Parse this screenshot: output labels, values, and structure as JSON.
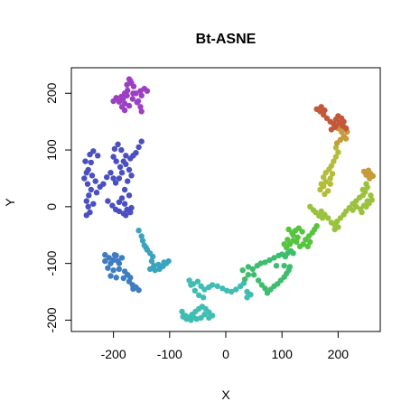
{
  "chart_data": {
    "type": "scatter",
    "title": "Bt-ASNE",
    "xlabel": "X",
    "ylabel": "Y",
    "xlim": [
      -275,
      275
    ],
    "ylim": [
      -220,
      245
    ],
    "xticks": [
      -200,
      -100,
      0,
      100,
      200
    ],
    "xtick_labels": [
      "-200",
      "-100",
      "0",
      "100",
      "200"
    ],
    "yticks": [
      -200,
      -100,
      0,
      100,
      200
    ],
    "ytick_labels": [
      "-200",
      "-100",
      "0",
      "100",
      "200"
    ],
    "grid": false,
    "color_scale": "rainbow",
    "series": [
      {
        "color": "#9c3fc2",
        "points": [
          [
            -172,
            225
          ],
          [
            -168,
            218
          ],
          [
            -164,
            212
          ],
          [
            -175,
            205
          ],
          [
            -180,
            200
          ],
          [
            -186,
            194
          ],
          [
            -195,
            192
          ],
          [
            -200,
            186
          ],
          [
            -190,
            185
          ],
          [
            -183,
            190
          ],
          [
            -176,
            196
          ],
          [
            -180,
            182
          ],
          [
            -185,
            176
          ],
          [
            -180,
            170
          ],
          [
            -172,
            178
          ],
          [
            -166,
            190
          ],
          [
            -160,
            200
          ],
          [
            -152,
            204
          ],
          [
            -145,
            208
          ],
          [
            -140,
            204
          ],
          [
            -150,
            196
          ],
          [
            -156,
            186
          ],
          [
            -152,
            176
          ],
          [
            -150,
            168
          ],
          [
            -158,
            184
          ],
          [
            -165,
            200
          ],
          [
            -170,
            222
          ],
          [
            -176,
            215
          ]
        ]
      },
      {
        "color": "#4a4fc2",
        "points": [
          [
            -150,
            115
          ],
          [
            -155,
            105
          ],
          [
            -160,
            95
          ],
          [
            -165,
            90
          ],
          [
            -170,
            85
          ],
          [
            -178,
            90
          ],
          [
            -186,
            100
          ],
          [
            -192,
            110
          ],
          [
            -198,
            102
          ],
          [
            -200,
            88
          ],
          [
            -195,
            80
          ],
          [
            -188,
            70
          ],
          [
            -185,
            60
          ],
          [
            -190,
            50
          ],
          [
            -196,
            42
          ],
          [
            -200,
            50
          ],
          [
            -205,
            60
          ],
          [
            -212,
            52
          ],
          [
            -218,
            40
          ],
          [
            -224,
            35
          ],
          [
            -232,
            45
          ],
          [
            -238,
            55
          ],
          [
            -245,
            65
          ],
          [
            -250,
            80
          ],
          [
            -242,
            92
          ],
          [
            -236,
            98
          ],
          [
            -228,
            90
          ],
          [
            -240,
            78
          ],
          [
            -248,
            60
          ],
          [
            -252,
            50
          ],
          [
            -246,
            40
          ],
          [
            -240,
            30
          ],
          [
            -244,
            20
          ],
          [
            -248,
            10
          ],
          [
            -245,
            0
          ],
          [
            -242,
            -10
          ],
          [
            -248,
            -15
          ],
          [
            -236,
            5
          ],
          [
            -230,
            25
          ],
          [
            -210,
            10
          ],
          [
            -202,
            2
          ],
          [
            -196,
            -5
          ],
          [
            -190,
            8
          ],
          [
            -185,
            15
          ],
          [
            -180,
            5
          ],
          [
            -176,
            -5
          ],
          [
            -182,
            -12
          ],
          [
            -190,
            -8
          ],
          [
            -178,
            -15
          ],
          [
            -170,
            -10
          ],
          [
            -168,
            -2
          ],
          [
            -172,
            20
          ],
          [
            -180,
            30
          ],
          [
            -175,
            45
          ],
          [
            -168,
            55
          ],
          [
            -172,
            65
          ],
          [
            -178,
            75
          ],
          [
            -182,
            80
          ]
        ]
      },
      {
        "color": "#3f7dc2",
        "points": [
          [
            -215,
            -85
          ],
          [
            -208,
            -90
          ],
          [
            -200,
            -94
          ],
          [
            -195,
            -86
          ],
          [
            -192,
            -96
          ],
          [
            -205,
            -100
          ],
          [
            -215,
            -96
          ],
          [
            -210,
            -108
          ],
          [
            -200,
            -112
          ],
          [
            -190,
            -110
          ],
          [
            -180,
            -114
          ],
          [
            -175,
            -120
          ],
          [
            -170,
            -125
          ],
          [
            -172,
            -132
          ],
          [
            -166,
            -138
          ],
          [
            -160,
            -142
          ],
          [
            -155,
            -147
          ],
          [
            -165,
            -145
          ],
          [
            -190,
            -100
          ],
          [
            -185,
            -90
          ],
          [
            -198,
            -85
          ],
          [
            -205,
            -122
          ],
          [
            -195,
            -125
          ],
          [
            -182,
            -126
          ]
        ]
      },
      {
        "color": "#3aa3bd",
        "points": [
          [
            -155,
            -42
          ],
          [
            -150,
            -52
          ],
          [
            -148,
            -60
          ],
          [
            -145,
            -68
          ],
          [
            -140,
            -76
          ],
          [
            -135,
            -82
          ],
          [
            -130,
            -88
          ],
          [
            -132,
            -96
          ],
          [
            -128,
            -104
          ],
          [
            -135,
            -110
          ],
          [
            -126,
            -112
          ],
          [
            -118,
            -110
          ],
          [
            -112,
            -105
          ],
          [
            -106,
            -100
          ],
          [
            -102,
            -96
          ],
          [
            -110,
            -98
          ],
          [
            -120,
            -102
          ],
          [
            -142,
            -72
          ]
        ]
      },
      {
        "color": "#3ebdb3",
        "points": [
          [
            -65,
            -130
          ],
          [
            -58,
            -136
          ],
          [
            -50,
            -132
          ],
          [
            -44,
            -140
          ],
          [
            -38,
            -146
          ],
          [
            -30,
            -142
          ],
          [
            -24,
            -138
          ],
          [
            -15,
            -140
          ],
          [
            -6,
            -144
          ],
          [
            2,
            -148
          ],
          [
            10,
            -150
          ],
          [
            18,
            -146
          ],
          [
            26,
            -140
          ],
          [
            32,
            -135
          ],
          [
            38,
            -150
          ],
          [
            44,
            -155
          ],
          [
            38,
            -160
          ],
          [
            -62,
            -138
          ],
          [
            -55,
            -148
          ],
          [
            -48,
            -156
          ],
          [
            -40,
            -160
          ],
          [
            -78,
            -185
          ],
          [
            -72,
            -192
          ],
          [
            -66,
            -195
          ],
          [
            -60,
            -190
          ],
          [
            -54,
            -185
          ],
          [
            -48,
            -180
          ],
          [
            -42,
            -176
          ],
          [
            -36,
            -180
          ],
          [
            -30,
            -186
          ],
          [
            -24,
            -192
          ],
          [
            -30,
            -196
          ],
          [
            -38,
            -190
          ],
          [
            -44,
            -196
          ],
          [
            -52,
            -198
          ],
          [
            -62,
            -200
          ],
          [
            -70,
            -198
          ],
          [
            -76,
            -194
          ],
          [
            -58,
            -194
          ]
        ]
      },
      {
        "color": "#3fbd6e",
        "points": [
          [
            30,
            -112
          ],
          [
            40,
            -106
          ],
          [
            48,
            -110
          ],
          [
            56,
            -104
          ],
          [
            62,
            -100
          ],
          [
            70,
            -98
          ],
          [
            78,
            -94
          ],
          [
            86,
            -90
          ],
          [
            94,
            -86
          ],
          [
            100,
            -84
          ],
          [
            106,
            -88
          ],
          [
            110,
            -82
          ],
          [
            116,
            -78
          ],
          [
            120,
            -82
          ],
          [
            50,
            -120
          ],
          [
            58,
            -130
          ],
          [
            64,
            -138
          ],
          [
            70,
            -144
          ],
          [
            74,
            -152
          ],
          [
            80,
            -146
          ],
          [
            86,
            -140
          ],
          [
            92,
            -136
          ],
          [
            98,
            -130
          ],
          [
            104,
            -124
          ],
          [
            108,
            -118
          ],
          [
            112,
            -112
          ],
          [
            114,
            -106
          ],
          [
            104,
            -104
          ],
          [
            90,
            -104
          ],
          [
            40,
            -120
          ],
          [
            34,
            -128
          ]
        ]
      },
      {
        "color": "#56c43f",
        "points": [
          [
            112,
            -40
          ],
          [
            118,
            -46
          ],
          [
            124,
            -42
          ],
          [
            130,
            -38
          ],
          [
            136,
            -44
          ],
          [
            128,
            -54
          ],
          [
            120,
            -60
          ],
          [
            114,
            -66
          ],
          [
            108,
            -72
          ],
          [
            104,
            -66
          ],
          [
            110,
            -58
          ],
          [
            120,
            -50
          ],
          [
            126,
            -62
          ],
          [
            132,
            -70
          ],
          [
            138,
            -66
          ],
          [
            142,
            -58
          ],
          [
            148,
            -52
          ],
          [
            154,
            -46
          ],
          [
            158,
            -40
          ],
          [
            162,
            -34
          ],
          [
            150,
            -62
          ],
          [
            146,
            -70
          ]
        ]
      },
      {
        "color": "#9ac23c",
        "points": [
          [
            160,
            -10
          ],
          [
            166,
            -16
          ],
          [
            172,
            -20
          ],
          [
            176,
            -14
          ],
          [
            182,
            -20
          ],
          [
            188,
            -28
          ],
          [
            194,
            -32
          ],
          [
            198,
            -26
          ],
          [
            204,
            -20
          ],
          [
            210,
            -14
          ],
          [
            200,
            -36
          ],
          [
            194,
            -40
          ],
          [
            150,
            0
          ],
          [
            156,
            -6
          ],
          [
            170,
            -8
          ],
          [
            214,
            -8
          ],
          [
            220,
            -2
          ],
          [
            226,
            5
          ],
          [
            232,
            10
          ],
          [
            238,
            16
          ],
          [
            244,
            20
          ],
          [
            248,
            26
          ],
          [
            252,
            34
          ],
          [
            250,
            40
          ],
          [
            244,
            30
          ],
          [
            232,
            0
          ],
          [
            226,
            -6
          ],
          [
            240,
            -4
          ],
          [
            250,
            0
          ],
          [
            255,
            6
          ],
          [
            260,
            12
          ],
          [
            258,
            20
          ],
          [
            252,
            10
          ],
          [
            246,
            2
          ],
          [
            242,
            -10
          ]
        ]
      },
      {
        "color": "#b3bd3a",
        "points": [
          [
            168,
            30
          ],
          [
            174,
            36
          ],
          [
            178,
            44
          ],
          [
            174,
            52
          ],
          [
            170,
            40
          ],
          [
            178,
            60
          ],
          [
            184,
            66
          ],
          [
            188,
            72
          ],
          [
            192,
            80
          ],
          [
            196,
            88
          ],
          [
            200,
            96
          ],
          [
            196,
            104
          ],
          [
            190,
            58
          ],
          [
            186,
            50
          ],
          [
            182,
            28
          ],
          [
            176,
            22
          ],
          [
            186,
            40
          ]
        ]
      },
      {
        "color": "#c79a3a",
        "points": [
          [
            198,
            112
          ],
          [
            204,
            118
          ],
          [
            210,
            124
          ],
          [
            206,
            132
          ],
          [
            200,
            138
          ],
          [
            206,
            146
          ],
          [
            212,
            140
          ],
          [
            216,
            132
          ],
          [
            214,
            120
          ],
          [
            254,
            64
          ],
          [
            258,
            58
          ],
          [
            262,
            54
          ],
          [
            256,
            50
          ],
          [
            250,
            56
          ],
          [
            246,
            62
          ]
        ]
      },
      {
        "color": "#c4573a",
        "points": [
          [
            162,
            172
          ],
          [
            168,
            168
          ],
          [
            174,
            162
          ],
          [
            180,
            156
          ],
          [
            186,
            150
          ],
          [
            192,
            146
          ],
          [
            196,
            154
          ],
          [
            200,
            160
          ],
          [
            206,
            156
          ],
          [
            210,
            150
          ],
          [
            202,
            148
          ],
          [
            194,
            140
          ],
          [
            188,
            136
          ],
          [
            196,
            142
          ],
          [
            170,
            176
          ],
          [
            176,
            170
          ],
          [
            208,
            142
          ],
          [
            214,
            138
          ]
        ]
      }
    ]
  }
}
